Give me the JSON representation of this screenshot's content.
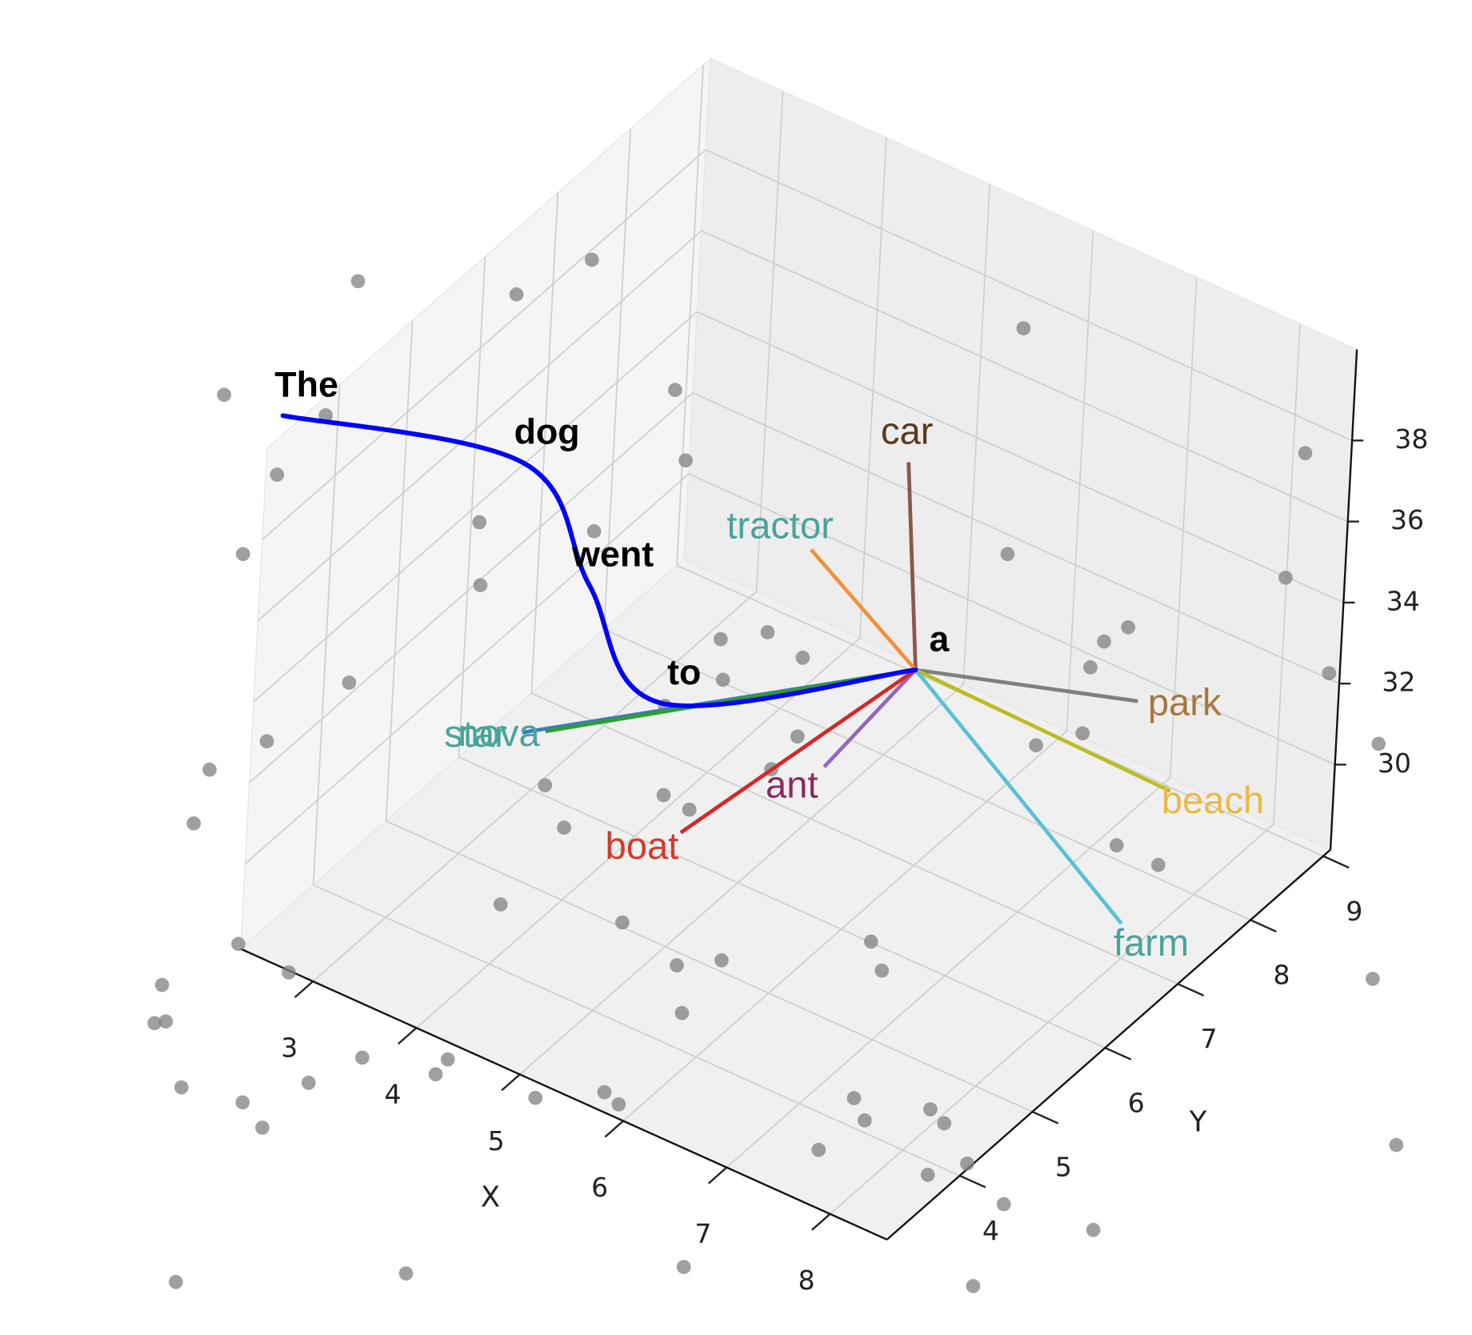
{
  "chart_data": {
    "type": "scatter3d",
    "xlabel": "X",
    "ylabel": "Y",
    "xlim": [
      2.3,
      8.55
    ],
    "ylim": [
      3,
      9.1
    ],
    "zlim": [
      27.9,
      40.25
    ],
    "xticks": [
      3,
      4,
      5,
      6,
      7,
      8
    ],
    "yticks": [
      4,
      5,
      6,
      7,
      8,
      9
    ],
    "zticks": [
      30,
      32,
      34,
      36,
      38
    ],
    "grid": true,
    "points": {
      "color": "#808080",
      "x": [
        0.47,
        1.58,
        1.81,
        5.07,
        0.44,
        1.24,
        3.29,
        3.87,
        1.36,
        7.78,
        6.61,
        8.56,
        3.8,
        3.0,
        1.72,
        2.34,
        4.27,
        4.52,
        4.93,
        6.79,
        6.74,
        6.84,
        8.41,
        4.58,
        2.21,
        2.11,
        1.95,
        4.4,
        5.47,
        7.27,
        7.06,
        9.24,
        5.54,
        4.21,
        5.04,
        2.24,
        5.31,
        4.64,
        2.25,
        3.64,
        4.55,
        5.46,
        6.28,
        6.56,
        5.21,
        5.59,
        7.15,
        7.56,
        2.78,
        2.06,
        2.35,
        2.29,
        3.87,
        4.43,
        4.46,
        3.71,
        2.93,
        3.43,
        3.74,
        5.27,
        5.67,
        5.85,
        7.31,
        7.54,
        7.88,
        8.07,
        7.46,
        8.51,
        8.34,
        9.04,
        9.8,
        9.76,
        11.12,
        7.45,
        5.72,
        4.31,
        9.44
      ],
      "y": [
        6.98,
        7.58,
        8.29,
        9.59,
        5.18,
        5.44,
        7.33,
        6.65,
        4.6,
        9.61,
        7.18,
        8.23,
        5.49,
        5.05,
        3.62,
        6.12,
        6.68,
        6.97,
        6.87,
        8.7,
        8.44,
        8.11,
        9.16,
        6.27,
        4.5,
        3.51,
        2.95,
        5.73,
        6.03,
        7.39,
        7.05,
        8.66,
        5.57,
        4.35,
        4.8,
        2.32,
        4.77,
        4.0,
        3.04,
        4.67,
        5.05,
        5.12,
        6.01,
        5.76,
        4.86,
        4.39,
        8.15,
        8.14,
        2.98,
        2.26,
        1.9,
        1.83,
        2.44,
        2.82,
        2.61,
        1.93,
        1.29,
        1.42,
        1.25,
        2.83,
        3.21,
        3.15,
        4.31,
        4.13,
        4.55,
        4.47,
        3.61,
        4.16,
        3.86,
        3.91,
        4.06,
        7.96,
        6.35,
        1.77,
        0.41,
        -0.75,
        2.92
      ],
      "z": [
        36,
        36,
        36,
        36,
        36,
        36,
        36,
        36,
        36,
        36,
        36,
        36,
        36,
        36,
        36,
        32,
        32,
        32,
        32,
        32,
        32,
        32,
        32,
        32,
        32,
        32,
        32,
        32,
        32,
        32,
        32,
        32,
        32,
        32,
        32,
        32,
        32,
        32,
        27.9,
        27.9,
        27.9,
        27.9,
        27.9,
        27.9,
        27.9,
        27.9,
        27.9,
        27.9,
        27.9,
        27.9,
        27.9,
        27.9,
        27.9,
        27.9,
        27.9,
        27.9,
        27.9,
        27.9,
        27.9,
        27.9,
        27.9,
        27.9,
        27.9,
        27.9,
        27.9,
        27.9,
        27.9,
        27.9,
        27.9,
        27.9,
        27.9,
        27.9,
        27.9,
        27.9,
        27.9,
        27.9,
        27.9
      ]
    },
    "sentence": {
      "color": "#0000ff",
      "words": [
        "The",
        "dog",
        "went",
        "to",
        "a"
      ],
      "x": [
        1.53,
        3.13,
        3.88,
        4.35,
        5.74
      ],
      "y": [
        4.38,
        5.44,
        5.34,
        5.74,
        7.27
      ],
      "z": [
        38,
        37,
        35,
        32,
        32
      ]
    },
    "neighbors": {
      "words": [
        "car",
        "tractor",
        "park",
        "beach",
        "farm",
        "ant",
        "boat",
        "star",
        "nova"
      ],
      "x": [
        5.59,
        5.04,
        7.39,
        7.97,
        8.06,
        5.58,
        4.86,
        3.68,
        3.82
      ],
      "y": [
        7.24,
        6.74,
        7.98,
        7.63,
        6.89,
        6.27,
        5.35,
        4.79,
        4.91
      ],
      "z": [
        37,
        35,
        32,
        31,
        29,
        31,
        30,
        32,
        32
      ],
      "colors": [
        "#5b3a1e",
        "#4aa39a",
        "#a5773f",
        "#e9b949",
        "#4aa39a",
        "#8b2a5e",
        "#d23a2a",
        "#4aa39a",
        "#4aa39a"
      ],
      "line_colors": [
        "#8c564b",
        "#f0913a",
        "#7f7f7f",
        "#bcbd22",
        "#5bc0d6",
        "#9467bd",
        "#d62728",
        "#3b7bbf",
        "#2ca02c"
      ]
    }
  }
}
